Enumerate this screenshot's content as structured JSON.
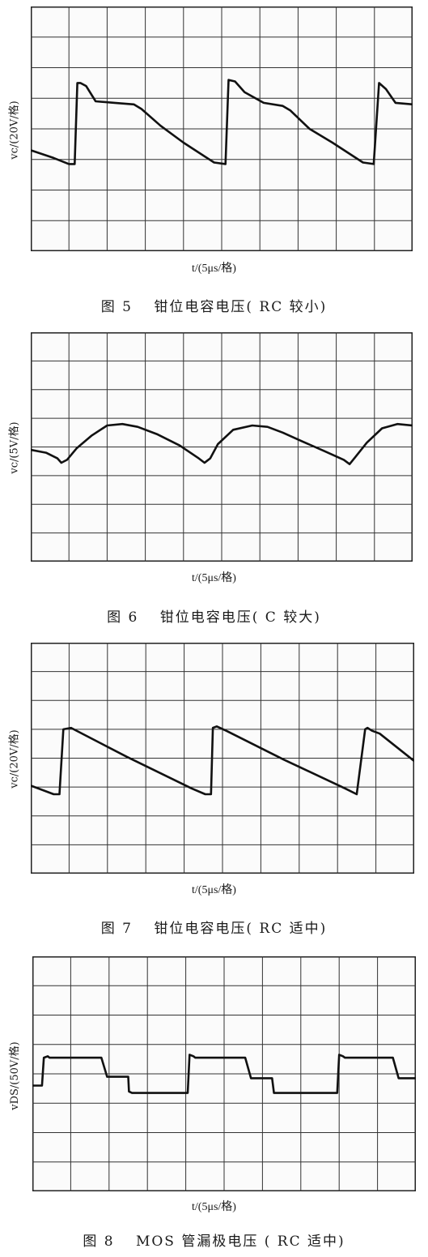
{
  "chart_data": [
    {
      "type": "line",
      "id": "fig5",
      "caption": "图 5　 钳位电容电压( RC 较小)",
      "ylabel": "vc/(20V/格)",
      "xlabel": "t/(5μs/格)",
      "grid": true,
      "x_divisions": 10,
      "y_divisions": 8,
      "xlim": [
        0,
        10
      ],
      "ylim": [
        0,
        8
      ],
      "series": [
        {
          "x": [
            0,
            0.6,
            1.0,
            1.15,
            1.22,
            1.3,
            1.45,
            1.7,
            2.2,
            2.7,
            2.9,
            3.4,
            4.0,
            4.8,
            5.1,
            5.18,
            5.35,
            5.6,
            6.1,
            6.6,
            6.8,
            7.3,
            7.9,
            8.7,
            8.98,
            9.12,
            9.3,
            9.55,
            10
          ],
          "y": [
            3.3,
            3.05,
            2.85,
            2.85,
            5.5,
            5.5,
            5.4,
            4.9,
            4.85,
            4.8,
            4.65,
            4.1,
            3.55,
            2.9,
            2.85,
            5.6,
            5.55,
            5.2,
            4.85,
            4.75,
            4.6,
            4.0,
            3.55,
            2.9,
            2.85,
            5.5,
            5.3,
            4.85,
            4.8
          ]
        }
      ]
    },
    {
      "type": "line",
      "id": "fig6",
      "caption": "图 6　 钳位电容电压( C 较大)",
      "ylabel": "vc/(5V/格)",
      "xlabel": "t/(5μs/格)",
      "grid": true,
      "x_divisions": 10,
      "y_divisions": 8,
      "xlim": [
        0,
        10
      ],
      "ylim": [
        0,
        8
      ],
      "series": [
        {
          "x": [
            0,
            0.4,
            0.7,
            0.8,
            0.95,
            1.2,
            1.6,
            2.0,
            2.4,
            2.8,
            3.3,
            3.9,
            4.4,
            4.55,
            4.7,
            4.9,
            5.3,
            5.8,
            6.2,
            6.6,
            7.1,
            7.7,
            8.2,
            8.35,
            8.5,
            8.8,
            9.2,
            9.6,
            10
          ],
          "y": [
            3.9,
            3.8,
            3.6,
            3.45,
            3.55,
            3.95,
            4.4,
            4.75,
            4.8,
            4.7,
            4.45,
            4.05,
            3.6,
            3.45,
            3.6,
            4.1,
            4.6,
            4.75,
            4.7,
            4.5,
            4.2,
            3.85,
            3.55,
            3.4,
            3.65,
            4.15,
            4.65,
            4.8,
            4.75
          ]
        }
      ]
    },
    {
      "type": "line",
      "id": "fig7",
      "caption": "图 7　 钳位电容电压( RC 适中)",
      "ylabel": "vc/(20V/格)",
      "xlabel": "t/(5μs/格)",
      "grid": true,
      "x_divisions": 10,
      "y_divisions": 8,
      "xlim": [
        0,
        10
      ],
      "ylim": [
        0,
        8
      ],
      "series": [
        {
          "x": [
            0,
            0.6,
            0.75,
            0.85,
            1.05,
            2.5,
            4.2,
            4.55,
            4.7,
            4.75,
            4.85,
            5.1,
            6.6,
            8.2,
            8.5,
            8.72,
            8.78,
            8.9,
            9.1,
            10
          ],
          "y": [
            3.05,
            2.75,
            2.75,
            5.0,
            5.05,
            4.05,
            2.95,
            2.75,
            2.75,
            5.05,
            5.1,
            4.95,
            3.95,
            2.95,
            2.75,
            5.0,
            5.05,
            4.95,
            4.85,
            3.9
          ]
        }
      ]
    },
    {
      "type": "line",
      "id": "fig8",
      "caption": "图 8　 MOS 管漏极电压 ( RC 适中)",
      "ylabel": "vDS/(50V/格)",
      "xlabel": "t/(5μs/格)",
      "grid": true,
      "x_divisions": 10,
      "y_divisions": 8,
      "xlim": [
        0,
        10
      ],
      "ylim": [
        0,
        8
      ],
      "series": [
        {
          "x": [
            0,
            0.25,
            0.3,
            0.4,
            0.45,
            1.8,
            1.95,
            2.5,
            2.52,
            2.6,
            2.65,
            4.05,
            4.1,
            4.2,
            4.25,
            5.55,
            5.7,
            6.25,
            6.3,
            6.6,
            6.65,
            7.95,
            8.0,
            8.1,
            8.15,
            9.4,
            9.55,
            10
          ],
          "y": [
            3.6,
            3.6,
            4.55,
            4.6,
            4.55,
            4.55,
            3.9,
            3.9,
            3.4,
            3.35,
            3.35,
            3.35,
            4.65,
            4.6,
            4.55,
            4.55,
            3.85,
            3.85,
            3.35,
            3.35,
            3.35,
            3.35,
            4.65,
            4.6,
            4.55,
            4.55,
            3.85,
            3.85
          ]
        }
      ]
    }
  ]
}
